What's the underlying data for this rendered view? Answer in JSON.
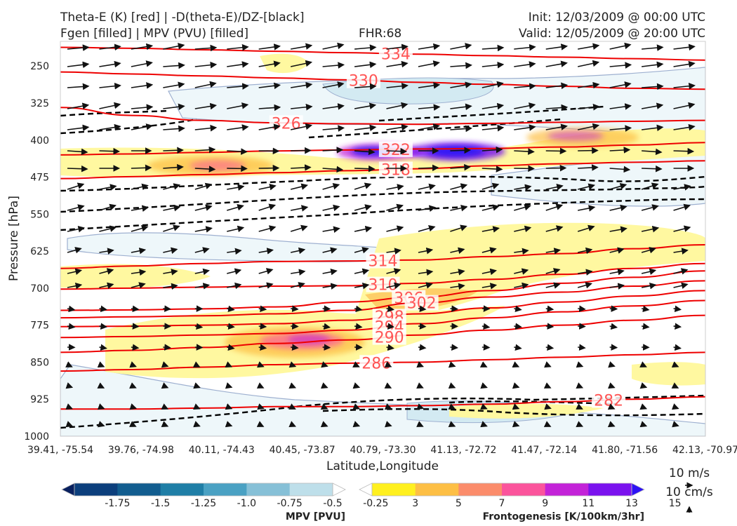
{
  "header": {
    "title_line1": "Theta-E (K) [red] | -D(theta-E)/DZ-[black]",
    "title_line2": "Fgen [filled] | MPV (PVU) [filled]",
    "fhr": "FHR:68",
    "init": "Init: 12/03/2009 @ 00:00 UTC",
    "valid": "Valid: 12/05/2009 @ 20:00 UTC"
  },
  "chart_data": {
    "type": "cross-section",
    "xlabel": "Latitude,Longitude",
    "ylabel": "Pressure [hPa]",
    "y_ticks": [
      250,
      325,
      400,
      475,
      550,
      625,
      700,
      775,
      850,
      925,
      1000
    ],
    "ylim": [
      1000,
      200
    ],
    "x_ticks": [
      "39.41, -75.54",
      "39.76, -74.98",
      "40.11, -74.43",
      "40.45, -73.87",
      "40.79, -73.30",
      "41.13, -72.72",
      "41.47, -72.14",
      "41.80, -71.56",
      "42.13, -70.97"
    ],
    "theta_e_contours": [
      {
        "label": "334",
        "p": [
          212,
          214,
          217,
          220,
          223,
          226,
          229,
          232,
          235,
          238
        ]
      },
      {
        "label": "330",
        "p": [
          262,
          266,
          270,
          274,
          278,
          283,
          287,
          291,
          295,
          297
        ]
      },
      {
        "label": "326",
        "p": [
          334,
          350,
          360,
          365,
          367,
          368,
          366,
          364,
          362,
          360
        ],
        "note": "irregular"
      },
      {
        "label": "322",
        "p": [
          430,
          428,
          425,
          422,
          420,
          418,
          417,
          414,
          410,
          405
        ]
      },
      {
        "label": "318",
        "p": [
          478,
          474,
          470,
          466,
          462,
          458,
          452,
          448,
          445,
          442
        ]
      },
      {
        "label": "314",
        "p": [
          660,
          655,
          650,
          646,
          645,
          643,
          636,
          630,
          620,
          612
        ]
      },
      {
        "label": "310",
        "p": [
          702,
          700,
          698,
          696,
          695,
          690,
          682,
          672,
          660,
          650
        ]
      },
      {
        "label": "306",
        "p": [
          745,
          744,
          742,
          738,
          728,
          718,
          705,
          690,
          678,
          665
        ]
      },
      {
        "label": "302",
        "p": [
          760,
          758,
          756,
          752,
          745,
          730,
          718,
          708,
          696,
          685
        ]
      },
      {
        "label": "298",
        "p": [
          778,
          777,
          775,
          772,
          765,
          752,
          740,
          728,
          716,
          705
        ]
      },
      {
        "label": "294",
        "p": [
          800,
          798,
          795,
          792,
          785,
          772,
          760,
          748,
          736,
          725
        ]
      },
      {
        "label": "290",
        "p": [
          830,
          826,
          820,
          812,
          805,
          795,
          785,
          775,
          765,
          755
        ]
      },
      {
        "label": "286",
        "p": [
          868,
          865,
          860,
          855,
          852,
          850,
          845,
          840,
          835,
          830
        ]
      },
      {
        "label": "282",
        "p": [
          945,
          945,
          943,
          940,
          940,
          938,
          935,
          930,
          925,
          920
        ]
      }
    ],
    "mpv_legend": {
      "label": "MPV [PVU]",
      "levels": [
        "-1.75",
        "-1.5",
        "-1.25",
        "-1.0",
        "-0.75",
        "-0.5",
        "-0.25"
      ],
      "colors": [
        "#08205f",
        "#0c3f7c",
        "#125d8f",
        "#1f7ea6",
        "#4aa1c3",
        "#86c0d7",
        "#bedfea",
        "#ffffff"
      ]
    },
    "fgen_legend": {
      "label": "Frontogenesis [K/100km/3hr]",
      "levels": [
        "3",
        "5",
        "7",
        "9",
        "11",
        "13",
        "15"
      ],
      "colors": [
        "#ffffff",
        "#fff01f",
        "#fdbf45",
        "#fb8c6b",
        "#fb549c",
        "#c323d8",
        "#7a12ee",
        "#2d12f5"
      ]
    },
    "wind_keys": [
      "10 m/s",
      "10 cm/s"
    ]
  }
}
